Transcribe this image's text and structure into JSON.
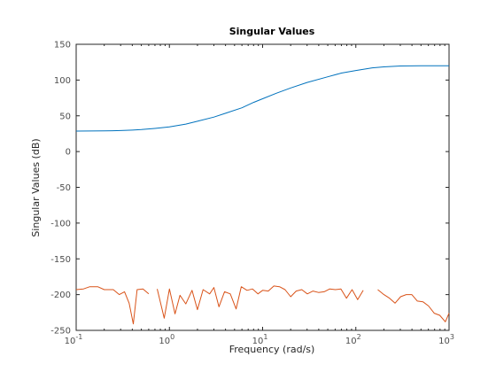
{
  "chart_data": {
    "type": "line",
    "title": "Singular Values",
    "xlabel": "Frequency (rad/s)",
    "ylabel": "Singular Values (dB)",
    "xscale": "log",
    "xlim": [
      0.1,
      1000
    ],
    "ylim": [
      -250,
      150
    ],
    "grid": false,
    "legend": "none",
    "x_ticks": [
      {
        "value": 0.1,
        "base": "10",
        "exp": "-1"
      },
      {
        "value": 1,
        "base": "10",
        "exp": "0"
      },
      {
        "value": 10,
        "base": "10",
        "exp": "1"
      },
      {
        "value": 100,
        "base": "10",
        "exp": "2"
      },
      {
        "value": 1000,
        "base": "10",
        "exp": "3"
      }
    ],
    "y_ticks": [
      150,
      100,
      50,
      0,
      -50,
      -100,
      -150,
      -200,
      -250
    ],
    "series": [
      {
        "color": "#0072bd",
        "points": [
          [
            0.1,
            28.6
          ],
          [
            0.2,
            28.9
          ],
          [
            0.3,
            29.4
          ],
          [
            0.4,
            30.0
          ],
          [
            0.5,
            30.7
          ],
          [
            0.7,
            32.3
          ],
          [
            1.0,
            34.5
          ],
          [
            1.5,
            38.4
          ],
          [
            2.0,
            42.4
          ],
          [
            3.0,
            48.2
          ],
          [
            4.0,
            53.5
          ],
          [
            6.0,
            61.2
          ],
          [
            8.0,
            68.8
          ],
          [
            10.0,
            73.8
          ],
          [
            14.0,
            81.5
          ],
          [
            20.0,
            89.0
          ],
          [
            30.0,
            96.6
          ],
          [
            50.0,
            104.5
          ],
          [
            70.0,
            109.7
          ],
          [
            100.0,
            113.3
          ],
          [
            150.0,
            117.0
          ],
          [
            200.0,
            118.4
          ],
          [
            300.0,
            119.7
          ],
          [
            500.0,
            120.0
          ],
          [
            700.0,
            120.0
          ],
          [
            1000.0,
            120.0
          ]
        ]
      },
      {
        "color": "#d95319",
        "segments": [
          [
            [
              0.1,
              -193
            ],
            [
              0.12,
              -192
            ],
            [
              0.14,
              -189
            ],
            [
              0.17,
              -189
            ],
            [
              0.2,
              -193
            ],
            [
              0.25,
              -193
            ],
            [
              0.29,
              -200
            ],
            [
              0.33,
              -196
            ],
            [
              0.37,
              -212
            ],
            [
              0.41,
              -241
            ],
            [
              0.45,
              -193
            ],
            [
              0.52,
              -192
            ],
            [
              0.6,
              -199
            ]
          ],
          [
            [
              0.74,
              -192
            ],
            [
              0.88,
              -233
            ],
            [
              1.0,
              -192
            ],
            [
              1.15,
              -227
            ],
            [
              1.3,
              -201
            ],
            [
              1.5,
              -213
            ],
            [
              1.75,
              -194
            ],
            [
              2.0,
              -221
            ],
            [
              2.3,
              -193
            ],
            [
              2.7,
              -199
            ],
            [
              3.0,
              -190
            ],
            [
              3.4,
              -217
            ],
            [
              3.9,
              -196
            ],
            [
              4.5,
              -199
            ],
            [
              5.2,
              -220
            ],
            [
              5.9,
              -189
            ],
            [
              6.8,
              -194
            ],
            [
              7.8,
              -192
            ],
            [
              8.9,
              -199
            ],
            [
              10.0,
              -194
            ],
            [
              11.5,
              -195
            ],
            [
              13.2,
              -188
            ],
            [
              15.2,
              -189
            ],
            [
              17.4,
              -193
            ],
            [
              20.0,
              -203
            ],
            [
              22.9,
              -195
            ],
            [
              26.3,
              -193
            ],
            [
              30.2,
              -199
            ],
            [
              34.7,
              -195
            ],
            [
              39.8,
              -197
            ],
            [
              45.7,
              -196
            ],
            [
              52.5,
              -192
            ],
            [
              60.3,
              -193
            ],
            [
              69.2,
              -192
            ],
            [
              79.4,
              -205
            ],
            [
              91.2,
              -193
            ],
            [
              104.7,
              -207
            ],
            [
              120.0,
              -194
            ]
          ],
          [
            [
              172.0,
              -193
            ],
            [
              200.0,
              -200
            ],
            [
              230.0,
              -205
            ],
            [
              263.0,
              -212
            ],
            [
              302.0,
              -203
            ],
            [
              347.0,
              -200
            ],
            [
              398.0,
              -200
            ],
            [
              457.0,
              -209
            ],
            [
              525.0,
              -210
            ],
            [
              603.0,
              -216
            ],
            [
              692.0,
              -226
            ],
            [
              794.0,
              -229
            ],
            [
              912.0,
              -238
            ],
            [
              1000.0,
              -226
            ]
          ]
        ]
      }
    ]
  }
}
